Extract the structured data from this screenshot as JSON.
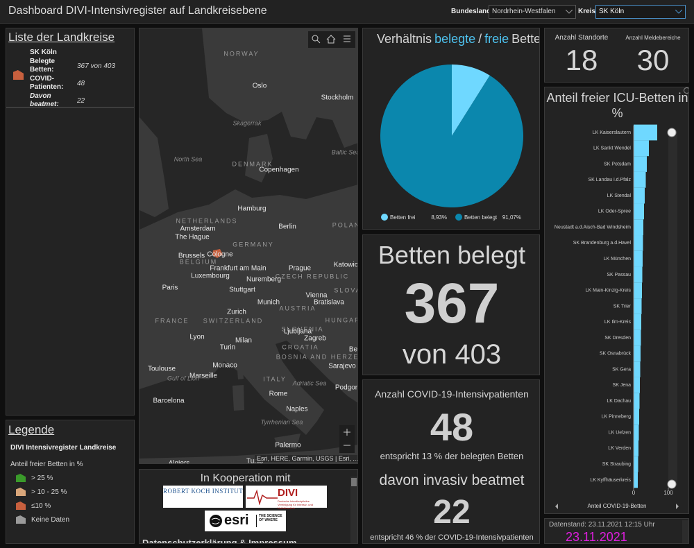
{
  "header": {
    "title": "Dashboard DIVI-Intensivregister auf Landkreisebene",
    "bundesland_label": "Bundesland",
    "bundesland": "Nordrhein-Westfalen",
    "kreis_label": "Kreis",
    "kreis": "SK Köln"
  },
  "list": {
    "title": "Liste der Landkreise",
    "items": [
      {
        "name": "SK Köln",
        "color": "#c8603e",
        "fields": [
          {
            "label": "Belegte Betten:",
            "value": "367 von 403"
          },
          {
            "label": "COVID-Patienten:",
            "value": 48
          },
          {
            "label": "Davon beatmet:",
            "value": 22
          }
        ]
      }
    ]
  },
  "legend": {
    "title": "Legende",
    "layer": "DIVI Intensivregister Landkreise",
    "field": "Anteil freier Betten in %",
    "items": [
      {
        "label": "> 25 %",
        "color": "#3a9a2a"
      },
      {
        "label": "> 10 - 25 %",
        "color": "#d9a67a"
      },
      {
        "label": "≤10 %",
        "color": "#c8603e"
      },
      {
        "label": "Keine Daten",
        "color": "#9a9a9a"
      }
    ]
  },
  "map": {
    "labels": [
      "NORWAY",
      "Oslo",
      "Stockholm",
      "Skagerrak",
      "North Sea",
      "Baltic Sea",
      "DENMARK",
      "Copenhagen",
      "Hamburg",
      "NETHERLANDS",
      "Amsterdam",
      "Berlin",
      "POLAN",
      "The Hague",
      "GERMANY",
      "Brussels",
      "Cologne",
      "BELGIUM",
      "Frankfurt am Main",
      "Prague",
      "Katowice",
      "Luxembourg",
      "CZECH REPUBLIC",
      "Nuremberg",
      "Paris",
      "Stuttgart",
      "SLOVA",
      "Munich",
      "Vienna",
      "AUSTRIA",
      "Bratislava",
      "Zurich",
      "SWITZERLAND",
      "FRANCE",
      "HUNGARY",
      "SLOVENIA",
      "Ljubljana",
      "Lyon",
      "Milan",
      "Zagreb",
      "Turin",
      "CROATIA",
      "BOSNIA AND HERZEGOVINA",
      "Sarajevo",
      "Be",
      "Toulouse",
      "Monaco",
      "Marseille",
      "Gulf of Lion",
      "ITALY",
      "Adriatic Sea",
      "Podgor",
      "Barcelona",
      "Rome",
      "Naples",
      "Tyrrhenian Sea",
      "Palermo",
      "Algiers",
      "Tunis"
    ],
    "attribution": "Esri, HERE, Garmin, USGS | Esri, ..."
  },
  "chart_data": [
    {
      "type": "pie",
      "title": [
        "Verhältnis",
        "belegte",
        "/",
        "freie",
        "Betten"
      ],
      "categories": [
        "Betten frei",
        "Betten belegt"
      ],
      "values": [
        8.93,
        91.07
      ],
      "value_labels": [
        "8,93%",
        "91,07%"
      ],
      "colors": [
        "#6fd8ff",
        "#0b87ad"
      ]
    },
    {
      "type": "bar",
      "orientation": "horizontal",
      "title": "Anteil freier ICU-Betten in %",
      "categories": [
        "LK Kaiserslautern",
        "LK Sankt Wendel",
        "SK Potsdam",
        "SK Landau i.d.Pfalz",
        "LK Stendal",
        "LK Oder-Spree",
        "Neustadt a.d.Aisch-Bad Windsheim",
        "SK Brandenburg a.d.Havel",
        "LK München",
        "SK Passau",
        "LK Main-Kinzig-Kreis",
        "SK Trier",
        "LK Ilm-Kreis",
        "SK Dresden",
        "SK Osnabrück",
        "SK Gera",
        "SK Jena",
        "LK Dachau",
        "LK Pinneberg",
        "LK Uelzen",
        "LK Verden",
        "SK Straubing",
        "LK Kyffhäuserkreis"
      ],
      "values": [
        68,
        44,
        38,
        35,
        32,
        30,
        28,
        27,
        26,
        25,
        24,
        23,
        22,
        21,
        20,
        19,
        18,
        17,
        16,
        15,
        14,
        13,
        12
      ],
      "color": "#6fd8ff",
      "xlim": [
        0,
        100
      ],
      "xticks": [
        0,
        100
      ],
      "xlabel": "Anteil COVID-19-Betten"
    }
  ],
  "beds": {
    "title": "Betten belegt",
    "value": 367,
    "prefix": "von",
    "total": 403
  },
  "covid": {
    "title": "Anzahl COVID-19-Intensivpatienten",
    "value": 48,
    "note": "entspricht 13 % der belegten Betten",
    "ventilated_title": "davon invasiv beatmet",
    "ventilated": 22,
    "ventilated_note": "entspricht 46 % der COVID-19-Intensivpatienten"
  },
  "counts": [
    {
      "label": "Anzahl Standorte",
      "value": 18
    },
    {
      "label": "Anzahl Meldebereiche",
      "value": 30
    }
  ],
  "date": {
    "label": "Datenstand: 23.11.2021 12:15 Uhr",
    "date": "23.11.2021"
  },
  "cooperation": {
    "title": "In Kooperation mit",
    "rki": "ROBERT KOCH INSTITUT",
    "divi": "DIVI",
    "divi_sub": "Deutsche Interdisziplinäre Vereinigung für Intensiv- und Notfallmedizin",
    "esri": "esri",
    "esri_tag": "THE SCIENCE OF WHERE",
    "link": "Datenschutzerklärung & Impressum"
  }
}
